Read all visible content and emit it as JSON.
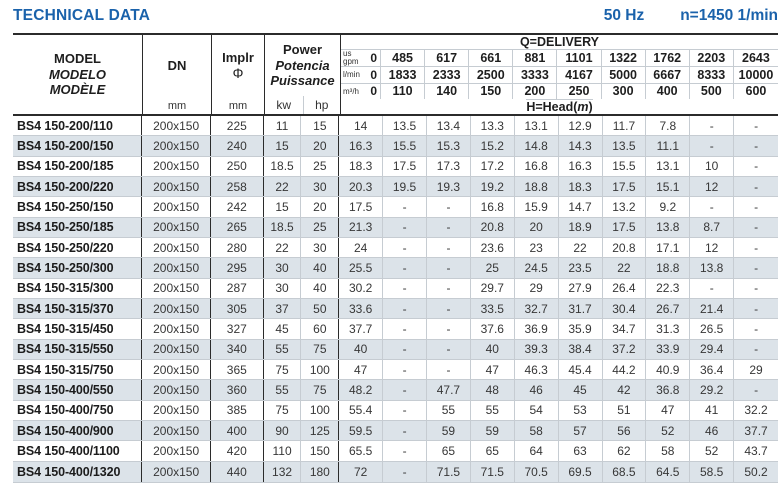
{
  "page": {
    "title": "TECHNICAL DATA",
    "frequency": "50 Hz",
    "speed": "n=1450 1/min"
  },
  "colors": {
    "accent_blue": "#1a62ab",
    "row_alt_background": "#dce3e9",
    "border_dark": "#2b2b2b",
    "border_light": "#c6ccd2",
    "text": "#373737"
  },
  "table": {
    "header": {
      "model_lines": [
        "MODEL",
        "MODELO",
        "MODÈLE"
      ],
      "dn_label": "DN",
      "dn_unit": "mm",
      "impeller_label": "Implr",
      "impeller_symbol": "Φ",
      "impeller_unit": "mm",
      "power_lines": [
        "Power",
        "Potencia",
        "Puissance"
      ],
      "power_unit_kw": "kw",
      "power_unit_hp": "hp",
      "delivery_title": "Q=DELIVERY",
      "delivery_units": [
        {
          "label": "us\ngpm",
          "zero": "0",
          "values": [
            "485",
            "617",
            "661",
            "881",
            "1101",
            "1322",
            "1762",
            "2203",
            "2643"
          ]
        },
        {
          "label": "l/min",
          "zero": "0",
          "values": [
            "1833",
            "2333",
            "2500",
            "3333",
            "4167",
            "5000",
            "6667",
            "8333",
            "10000"
          ]
        },
        {
          "label": "m³/h",
          "zero": "0",
          "values": [
            "110",
            "140",
            "150",
            "200",
            "250",
            "300",
            "400",
            "500",
            "600"
          ]
        }
      ],
      "head_prefix": "H=Head(",
      "head_unit": "m",
      "head_suffix": ")"
    },
    "rows": [
      {
        "model": "BS4 150-200/110",
        "dn": "200x150",
        "impeller": "225",
        "kw": "11",
        "hp": "15",
        "head": [
          "14",
          "13.5",
          "13.4",
          "13.3",
          "13.1",
          "12.9",
          "11.7",
          "7.8",
          "-",
          "-"
        ]
      },
      {
        "model": "BS4 150-200/150",
        "dn": "200x150",
        "impeller": "240",
        "kw": "15",
        "hp": "20",
        "head": [
          "16.3",
          "15.5",
          "15.3",
          "15.2",
          "14.8",
          "14.3",
          "13.5",
          "11.1",
          "-",
          "-"
        ]
      },
      {
        "model": "BS4 150-200/185",
        "dn": "200x150",
        "impeller": "250",
        "kw": "18.5",
        "hp": "25",
        "head": [
          "18.3",
          "17.5",
          "17.3",
          "17.2",
          "16.8",
          "16.3",
          "15.5",
          "13.1",
          "10",
          "-"
        ]
      },
      {
        "model": "BS4 150-200/220",
        "dn": "200x150",
        "impeller": "258",
        "kw": "22",
        "hp": "30",
        "head": [
          "20.3",
          "19.5",
          "19.3",
          "19.2",
          "18.8",
          "18.3",
          "17.5",
          "15.1",
          "12",
          "-"
        ]
      },
      {
        "model": "BS4 150-250/150",
        "dn": "200x150",
        "impeller": "242",
        "kw": "15",
        "hp": "20",
        "head": [
          "17.5",
          "-",
          "-",
          "16.8",
          "15.9",
          "14.7",
          "13.2",
          "9.2",
          "-",
          "-"
        ]
      },
      {
        "model": "BS4 150-250/185",
        "dn": "200x150",
        "impeller": "265",
        "kw": "18.5",
        "hp": "25",
        "head": [
          "21.3",
          "-",
          "-",
          "20.8",
          "20",
          "18.9",
          "17.5",
          "13.8",
          "8.7",
          "-"
        ]
      },
      {
        "model": "BS4 150-250/220",
        "dn": "200x150",
        "impeller": "280",
        "kw": "22",
        "hp": "30",
        "head": [
          "24",
          "-",
          "-",
          "23.6",
          "23",
          "22",
          "20.8",
          "17.1",
          "12",
          "-"
        ]
      },
      {
        "model": "BS4 150-250/300",
        "dn": "200x150",
        "impeller": "295",
        "kw": "30",
        "hp": "40",
        "head": [
          "25.5",
          "-",
          "-",
          "25",
          "24.5",
          "23.5",
          "22",
          "18.8",
          "13.8",
          "-"
        ]
      },
      {
        "model": "BS4 150-315/300",
        "dn": "200x150",
        "impeller": "287",
        "kw": "30",
        "hp": "40",
        "head": [
          "30.2",
          "-",
          "-",
          "29.7",
          "29",
          "27.9",
          "26.4",
          "22.3",
          "-",
          "-"
        ]
      },
      {
        "model": "BS4 150-315/370",
        "dn": "200x150",
        "impeller": "305",
        "kw": "37",
        "hp": "50",
        "head": [
          "33.6",
          "-",
          "-",
          "33.5",
          "32.7",
          "31.7",
          "30.4",
          "26.7",
          "21.4",
          "-"
        ]
      },
      {
        "model": "BS4 150-315/450",
        "dn": "200x150",
        "impeller": "327",
        "kw": "45",
        "hp": "60",
        "head": [
          "37.7",
          "-",
          "-",
          "37.6",
          "36.9",
          "35.9",
          "34.7",
          "31.3",
          "26.5",
          "-"
        ]
      },
      {
        "model": "BS4 150-315/550",
        "dn": "200x150",
        "impeller": "340",
        "kw": "55",
        "hp": "75",
        "head": [
          "40",
          "-",
          "-",
          "40",
          "39.3",
          "38.4",
          "37.2",
          "33.9",
          "29.4",
          "-"
        ]
      },
      {
        "model": "BS4 150-315/750",
        "dn": "200x150",
        "impeller": "365",
        "kw": "75",
        "hp": "100",
        "head": [
          "47",
          "-",
          "-",
          "47",
          "46.3",
          "45.4",
          "44.2",
          "40.9",
          "36.4",
          "29"
        ]
      },
      {
        "model": "BS4 150-400/550",
        "dn": "200x150",
        "impeller": "360",
        "kw": "55",
        "hp": "75",
        "head": [
          "48.2",
          "-",
          "47.7",
          "48",
          "46",
          "45",
          "42",
          "36.8",
          "29.2",
          "-"
        ]
      },
      {
        "model": "BS4 150-400/750",
        "dn": "200x150",
        "impeller": "385",
        "kw": "75",
        "hp": "100",
        "head": [
          "55.4",
          "-",
          "55",
          "55",
          "54",
          "53",
          "51",
          "47",
          "41",
          "32.2"
        ]
      },
      {
        "model": "BS4 150-400/900",
        "dn": "200x150",
        "impeller": "400",
        "kw": "90",
        "hp": "125",
        "head": [
          "59.5",
          "-",
          "59",
          "59",
          "58",
          "57",
          "56",
          "52",
          "46",
          "37.7"
        ]
      },
      {
        "model": "BS4 150-400/1100",
        "dn": "200x150",
        "impeller": "420",
        "kw": "110",
        "hp": "150",
        "head": [
          "65.5",
          "-",
          "65",
          "65",
          "64",
          "63",
          "62",
          "58",
          "52",
          "43.7"
        ]
      },
      {
        "model": "BS4 150-400/1320",
        "dn": "200x150",
        "impeller": "440",
        "kw": "132",
        "hp": "180",
        "head": [
          "72",
          "-",
          "71.5",
          "71.5",
          "70.5",
          "69.5",
          "68.5",
          "64.5",
          "58.5",
          "50.2"
        ]
      }
    ]
  }
}
